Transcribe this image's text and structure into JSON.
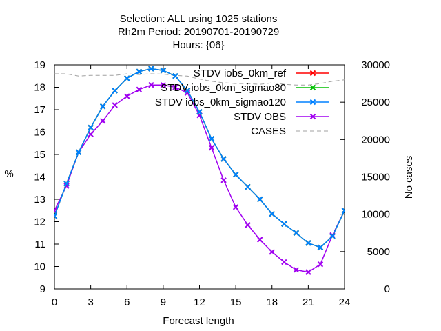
{
  "chart_data": {
    "type": "line",
    "title_lines": [
      "Selection: ALL using  1025 stations",
      "Rh2m   Period: 20190701-20190729",
      "Hours: {06}"
    ],
    "xlabel": "Forecast length",
    "ylabel": "%",
    "y2label": "No cases",
    "xlim": [
      0,
      24
    ],
    "ylim": [
      9,
      19
    ],
    "y2lim": [
      0,
      30000
    ],
    "xticks": [
      0,
      3,
      6,
      9,
      12,
      15,
      18,
      21,
      24
    ],
    "yticks": [
      9,
      10,
      11,
      12,
      13,
      14,
      15,
      16,
      17,
      18,
      19
    ],
    "y2ticks": [
      0,
      5000,
      10000,
      15000,
      20000,
      25000,
      30000
    ],
    "legend_position": "top-right",
    "x": [
      0,
      1,
      2,
      3,
      4,
      5,
      6,
      7,
      8,
      9,
      10,
      11,
      12,
      13,
      14,
      15,
      16,
      17,
      18,
      19,
      20,
      21,
      22,
      23,
      24
    ],
    "series": [
      {
        "name": "STDV iobs_0km_ref",
        "color": "#ff0000",
        "marker": "x",
        "axis": "y1",
        "values": [
          12.25,
          13.7,
          15.1,
          16.2,
          17.15,
          17.85,
          18.4,
          18.7,
          18.83,
          18.75,
          18.5,
          17.85,
          16.9,
          15.7,
          14.8,
          14.1,
          13.55,
          13.0,
          12.35,
          11.9,
          11.5,
          11.05,
          10.85,
          11.35,
          12.5
        ]
      },
      {
        "name": "STDV iobs_0km_sigmao80",
        "color": "#00c000",
        "marker": "x",
        "axis": "y1",
        "values": [
          12.25,
          13.7,
          15.1,
          16.2,
          17.15,
          17.85,
          18.4,
          18.7,
          18.83,
          18.75,
          18.5,
          17.85,
          16.9,
          15.7,
          14.8,
          14.1,
          13.55,
          13.0,
          12.35,
          11.9,
          11.5,
          11.05,
          10.85,
          11.35,
          12.5
        ]
      },
      {
        "name": "STDV iobs_0km_sigmao120",
        "color": "#0080ff",
        "marker": "x",
        "axis": "y1",
        "values": [
          12.25,
          13.7,
          15.1,
          16.2,
          17.15,
          17.85,
          18.4,
          18.7,
          18.83,
          18.75,
          18.5,
          17.85,
          16.9,
          15.7,
          14.8,
          14.1,
          13.55,
          13.0,
          12.35,
          11.9,
          11.5,
          11.05,
          10.85,
          11.35,
          12.5
        ]
      },
      {
        "name": "STDV OBS",
        "color": "#a000f0",
        "marker": "x",
        "axis": "y1",
        "values": [
          12.5,
          13.6,
          15.1,
          15.9,
          16.5,
          17.2,
          17.6,
          17.9,
          18.1,
          18.1,
          18.0,
          17.75,
          16.75,
          15.3,
          13.85,
          12.65,
          11.85,
          11.2,
          10.65,
          10.2,
          9.85,
          9.75,
          10.1,
          11.4,
          12.5
        ]
      },
      {
        "name": "CASES",
        "color": "#a0a0a0",
        "dash": true,
        "marker": "none",
        "axis": "y2",
        "values": [
          28800,
          28800,
          28500,
          28600,
          28600,
          28600,
          28800,
          28700,
          28800,
          28750,
          28600,
          28500,
          28100,
          27800,
          27600,
          27500,
          27500,
          27400,
          27600,
          27400,
          27300,
          27300,
          27500,
          27800,
          28000
        ]
      }
    ]
  }
}
